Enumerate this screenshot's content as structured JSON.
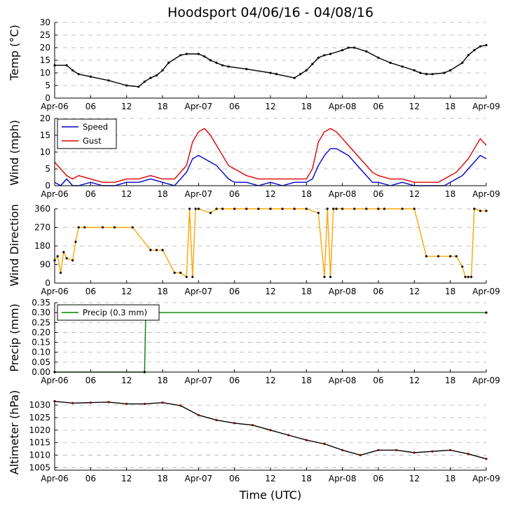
{
  "chart_data": {
    "type": "line",
    "title": "Hoodsport 04/06/16 - 04/08/16",
    "xlabel": "Time (UTC)",
    "x_tick_labels": [
      "Apr-06",
      "06",
      "12",
      "18",
      "Apr-07",
      "06",
      "12",
      "18",
      "Apr-08",
      "06",
      "12",
      "18",
      "Apr-09"
    ],
    "x_range_hours": [
      0,
      72
    ],
    "panels": [
      {
        "ylabel": "Temp (°C)",
        "ylim": [
          0,
          30
        ],
        "yticks": [
          "0",
          "5",
          "10",
          "15",
          "20",
          "25",
          "30"
        ],
        "grid": true,
        "series": [
          {
            "color": "#000000",
            "style": "line-markers",
            "x": [
              0,
              2,
              3,
              4,
              6,
              9,
              12,
              14,
              15,
              16,
              17,
              18,
              19,
              21,
              22,
              24,
              25,
              26,
              27,
              28,
              29,
              32,
              36,
              37,
              40,
              41,
              42,
              43,
              44,
              45,
              46,
              48,
              49,
              50,
              52,
              54,
              56,
              58,
              60,
              61,
              62,
              63,
              65,
              66,
              68,
              69,
              70,
              71,
              72
            ],
            "y": [
              13,
              13,
              11,
              9.5,
              8.5,
              7,
              5,
              4.5,
              6.5,
              8,
              9,
              11,
              14,
              17,
              17.5,
              17.5,
              16.5,
              15,
              14,
              13,
              12.5,
              11.5,
              10,
              9.5,
              8,
              9.5,
              11,
              13.5,
              16,
              17,
              17.5,
              19,
              20,
              20,
              18.5,
              16,
              14,
              12.5,
              11,
              10,
              9.5,
              9.5,
              10,
              11,
              14,
              17,
              19,
              20.5,
              21
            ]
          }
        ]
      },
      {
        "ylabel": "Wind (mph)",
        "ylim": [
          0,
          20
        ],
        "yticks": [
          "0",
          "5",
          "10",
          "15",
          "20"
        ],
        "grid": true,
        "legend": {
          "position": "upper-left",
          "entries": [
            "Speed",
            "Gust"
          ]
        },
        "series": [
          {
            "name": "Speed",
            "color": "#0000cc",
            "style": "line",
            "x": [
              0,
              1,
              2,
              3,
              4,
              6,
              8,
              10,
              12,
              14,
              16,
              18,
              20,
              22,
              23,
              24,
              25,
              26,
              27,
              28,
              29,
              30,
              32,
              34,
              36,
              38,
              40,
              42,
              43,
              44,
              45,
              46,
              47,
              48,
              49,
              50,
              51,
              52,
              53,
              54,
              56,
              58,
              60,
              62,
              64,
              65,
              66,
              67,
              68,
              69,
              70,
              71,
              72
            ],
            "y": [
              1,
              0,
              2,
              0,
              0,
              1,
              0,
              0,
              1,
              1,
              2,
              1,
              0,
              4,
              8,
              9,
              8,
              7,
              6,
              4,
              2,
              1,
              1,
              0,
              1,
              0,
              1,
              1,
              2,
              6,
              9,
              11,
              11,
              10,
              9,
              7,
              5,
              3,
              1,
              1,
              0,
              1,
              0,
              0,
              0,
              0,
              1,
              2,
              3,
              5,
              7,
              9,
              8
            ]
          },
          {
            "name": "Gust",
            "color": "#dd0000",
            "style": "line",
            "x": [
              0,
              1,
              2,
              3,
              4,
              6,
              8,
              10,
              12,
              14,
              16,
              18,
              20,
              22,
              23,
              24,
              25,
              26,
              27,
              28,
              29,
              30,
              32,
              34,
              36,
              38,
              40,
              42,
              43,
              44,
              45,
              46,
              47,
              48,
              49,
              50,
              51,
              52,
              53,
              54,
              56,
              58,
              60,
              62,
              64,
              65,
              66,
              67,
              68,
              69,
              70,
              71,
              72
            ],
            "y": [
              7,
              5,
              3,
              2,
              3,
              2,
              1,
              1,
              2,
              2,
              3,
              2,
              2,
              6,
              13,
              16,
              17,
              15,
              12,
              9,
              6,
              5,
              3,
              2,
              2,
              2,
              2,
              2,
              5,
              13,
              16,
              17,
              16,
              14,
              12,
              10,
              8,
              6,
              4,
              3,
              2,
              2,
              1,
              1,
              1,
              2,
              3,
              4,
              6,
              8,
              11,
              14,
              12
            ]
          }
        ]
      },
      {
        "ylabel": "Wind Direction",
        "ylim": [
          0,
          360
        ],
        "yticks": [
          "0",
          "90",
          "180",
          "270",
          "360"
        ],
        "grid": true,
        "series": [
          {
            "color": "#ffa500",
            "style": "line-markers",
            "x": [
              0,
              0.5,
              1,
              1.5,
              2,
              3,
              3.5,
              4,
              5,
              8,
              10,
              13,
              16,
              17,
              18,
              20,
              21,
              22,
              22.5,
              23,
              23.5,
              24,
              26,
              27,
              28,
              30,
              32,
              34,
              36,
              38,
              40,
              42,
              44,
              45,
              45.5,
              46,
              46.5,
              47,
              48,
              50,
              52,
              54,
              55,
              58,
              60,
              62,
              64,
              66,
              67,
              68,
              68.5,
              69,
              69.5,
              70,
              71,
              72
            ],
            "y": [
              110,
              130,
              50,
              150,
              120,
              110,
              200,
              270,
              270,
              270,
              270,
              270,
              160,
              160,
              160,
              50,
              50,
              30,
              360,
              30,
              360,
              360,
              340,
              360,
              360,
              360,
              360,
              360,
              360,
              360,
              360,
              360,
              340,
              30,
              360,
              30,
              360,
              360,
              360,
              360,
              360,
              360,
              360,
              360,
              360,
              130,
              130,
              130,
              130,
              80,
              30,
              30,
              30,
              360,
              350,
              350
            ]
          }
        ]
      },
      {
        "ylabel": "Precip (mm)",
        "ylim": [
          0,
          0.35
        ],
        "yticks": [
          "0.00",
          "0.05",
          "0.10",
          "0.15",
          "0.20",
          "0.25",
          "0.30",
          "0.35"
        ],
        "grid": true,
        "legend": {
          "position": "upper-left",
          "entries": [
            "Precip (0.3 mm)"
          ]
        },
        "series": [
          {
            "name": "Precip (0.3 mm)",
            "color": "#008000",
            "style": "line-markers",
            "x": [
              0,
              15,
              15.2,
              72
            ],
            "y": [
              0,
              0,
              0.3,
              0.3
            ]
          }
        ]
      },
      {
        "ylabel": "Altimeter (hPa)",
        "ylim": [
          1004,
          1032
        ],
        "yticks": [
          "1005",
          "1010",
          "1015",
          "1020",
          "1025",
          "1030"
        ],
        "grid": true,
        "series": [
          {
            "color": "#000000",
            "style": "line-markers",
            "marker_color": "#8b0000",
            "x": [
              0,
              3,
              6,
              9,
              12,
              15,
              18,
              21,
              24,
              27,
              30,
              33,
              36,
              39,
              42,
              45,
              48,
              51,
              54,
              57,
              60,
              63,
              66,
              69,
              72
            ],
            "y": [
              1031.5,
              1030.8,
              1031,
              1031.2,
              1030.5,
              1030.5,
              1031,
              1029.8,
              1026,
              1024,
              1022.8,
              1022,
              1020,
              1018,
              1016,
              1014.5,
              1012,
              1010,
              1012,
              1012,
              1011,
              1011.5,
              1012,
              1010.5,
              1008.5
            ]
          }
        ]
      }
    ]
  }
}
